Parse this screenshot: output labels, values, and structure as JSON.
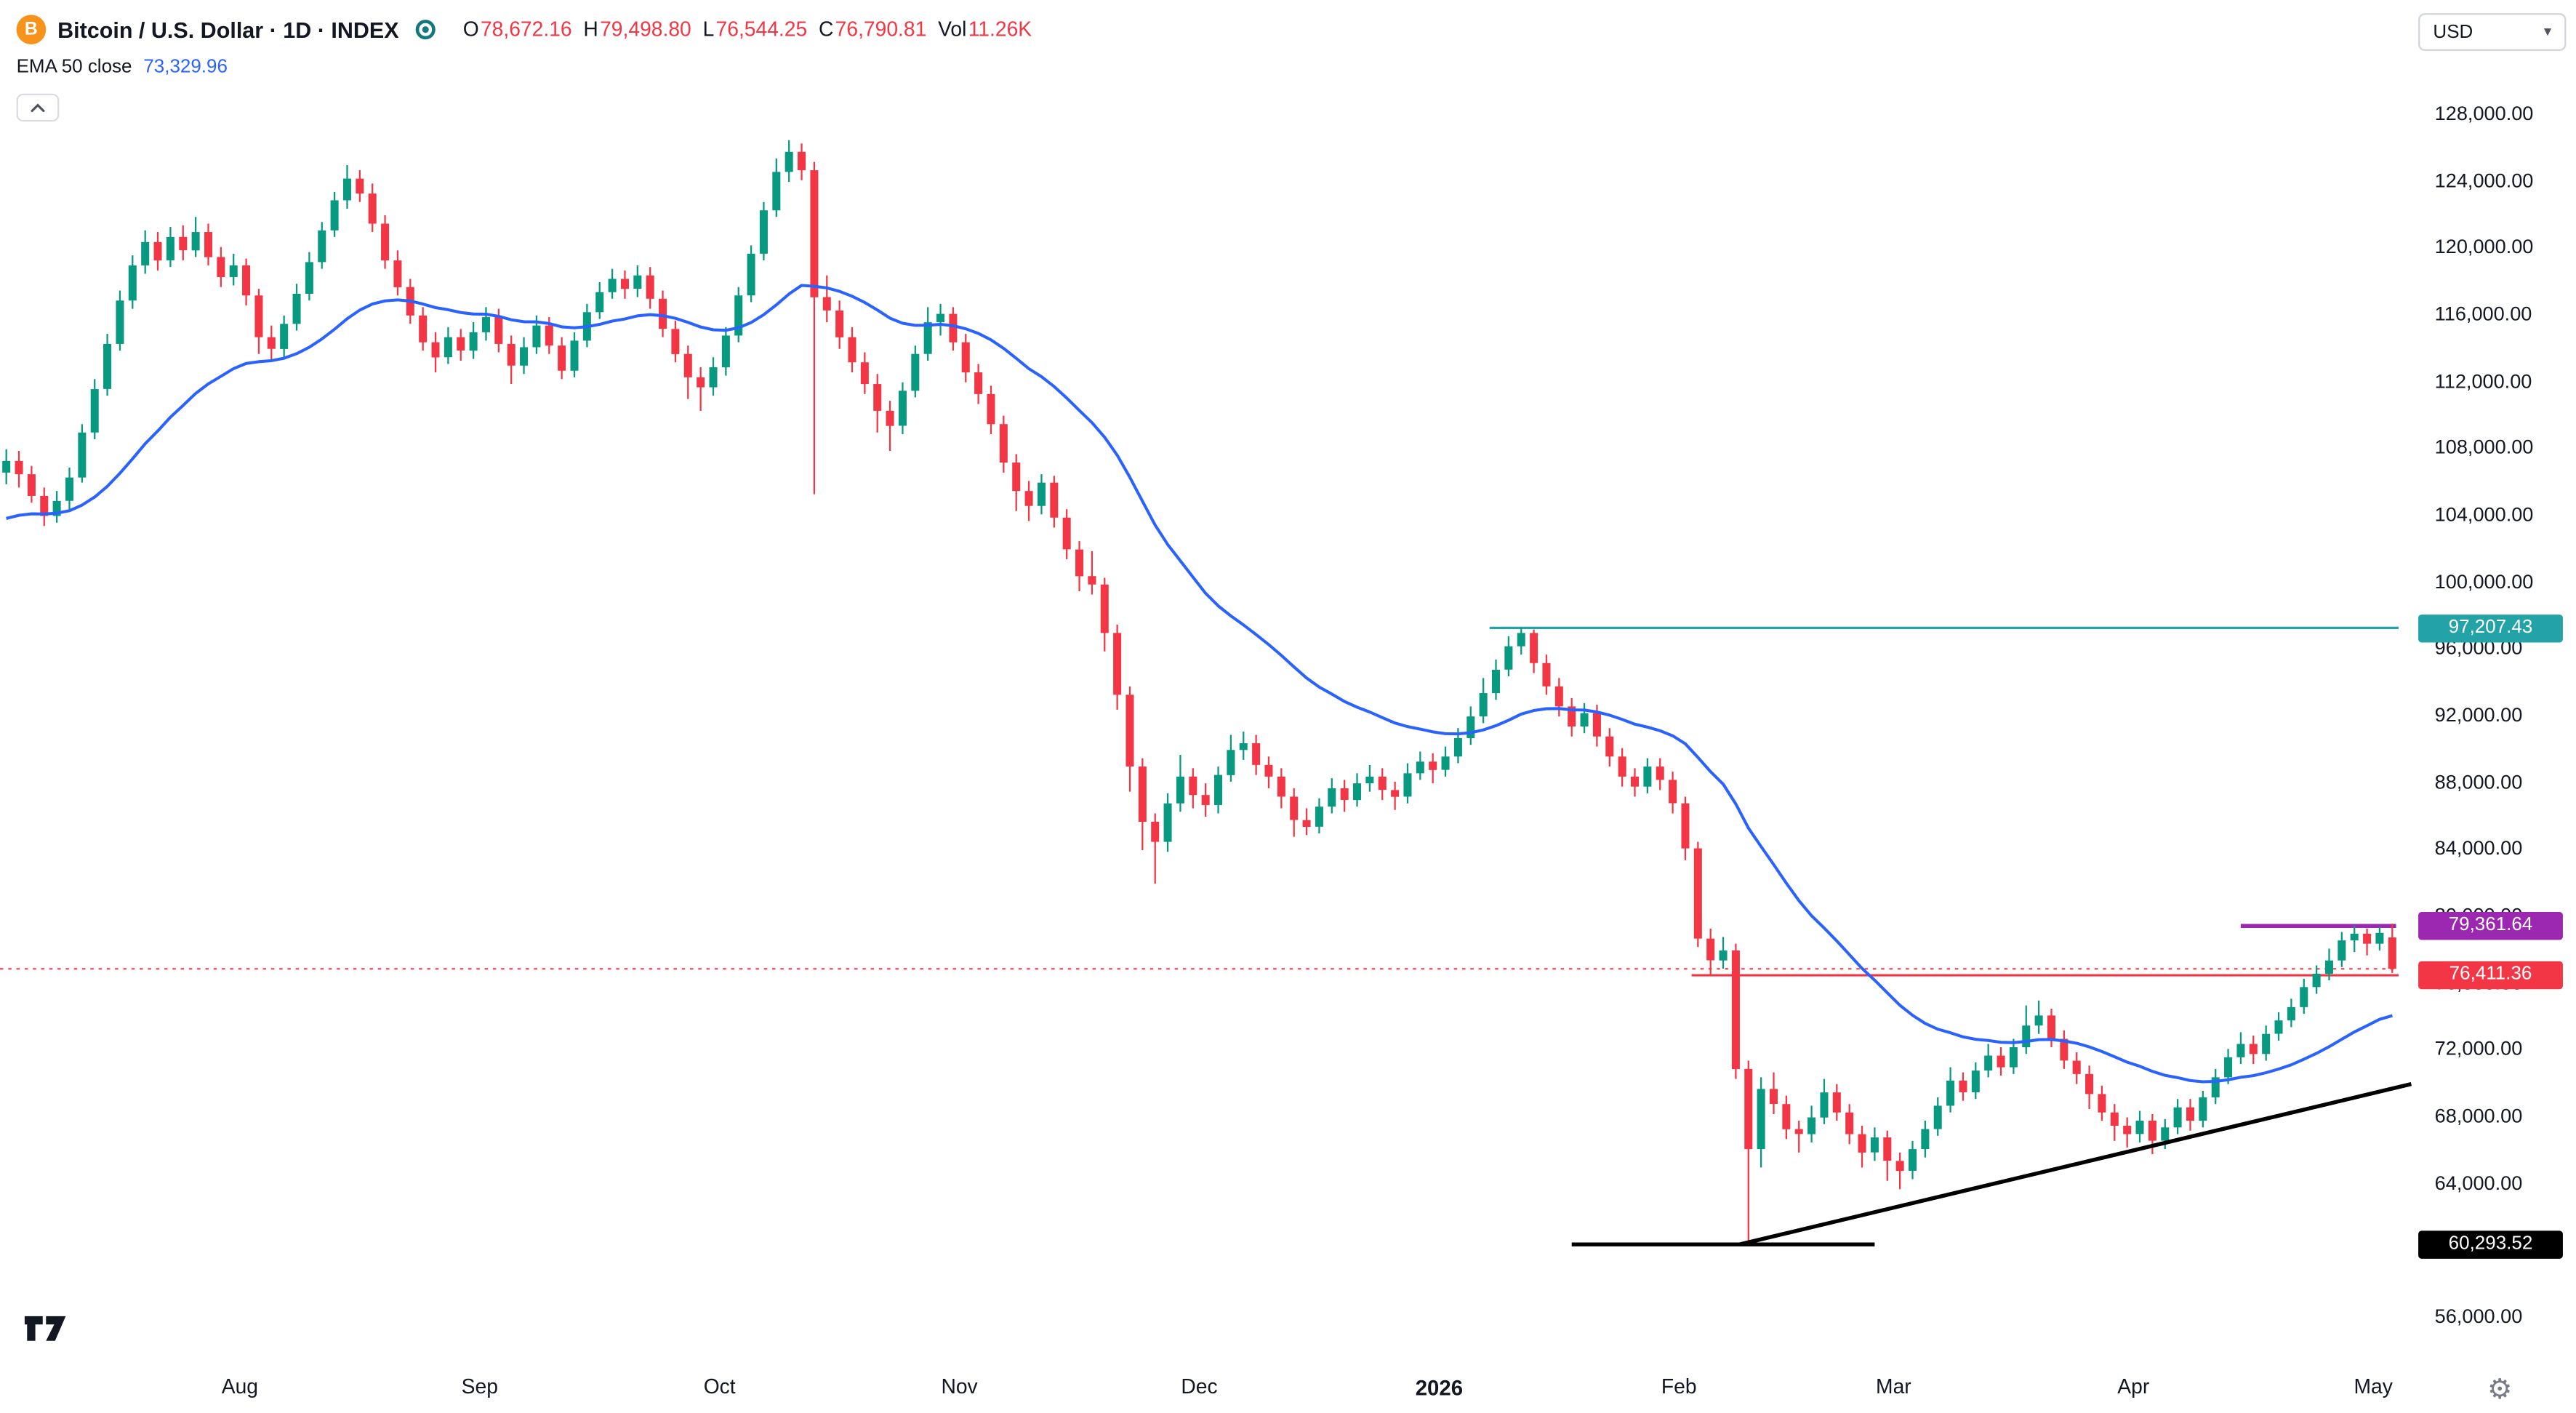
{
  "header": {
    "symbol_title": "Bitcoin / U.S. Dollar · 1D · INDEX",
    "ohlc": {
      "o_label": "O",
      "o": "78,672.16",
      "h_label": "H",
      "h": "79,498.80",
      "l_label": "L",
      "l": "76,544.25",
      "c_label": "C",
      "c": "76,790.81",
      "vol_label": "Vol",
      "vol": "11.26K"
    },
    "indicator": {
      "label": "EMA 50 close",
      "value": "73,329.96"
    }
  },
  "toolbar": {
    "currency": "USD"
  },
  "colors": {
    "up": "#089981",
    "down": "#F23645",
    "ema": "#2962FF",
    "bitcoin_orange": "#F7931A",
    "text": "#131722",
    "muted": "#787B86",
    "background": "#FFFFFF"
  },
  "chart_data": {
    "type": "candlestick",
    "title": "Bitcoin / U.S. Dollar",
    "timeframe": "1D",
    "source": "INDEX",
    "price_axis": {
      "min": 56000,
      "max": 128000,
      "step": 4000,
      "ticks": [
        {
          "v": 128000,
          "label": "128,000.00"
        },
        {
          "v": 124000,
          "label": "124,000.00"
        },
        {
          "v": 120000,
          "label": "120,000.00"
        },
        {
          "v": 116000,
          "label": "116,000.00"
        },
        {
          "v": 112000,
          "label": "112,000.00"
        },
        {
          "v": 108000,
          "label": "108,000.00"
        },
        {
          "v": 104000,
          "label": "104,000.00"
        },
        {
          "v": 100000,
          "label": "100,000.00"
        },
        {
          "v": 96000,
          "label": "96,000.00"
        },
        {
          "v": 92000,
          "label": "92,000.00"
        },
        {
          "v": 88000,
          "label": "88,000.00"
        },
        {
          "v": 84000,
          "label": "84,000.00"
        },
        {
          "v": 80000,
          "label": "80,000.00"
        },
        {
          "v": 76000,
          "label": "76,000.00"
        },
        {
          "v": 72000,
          "label": "72,000.00"
        },
        {
          "v": 68000,
          "label": "68,000.00"
        },
        {
          "v": 64000,
          "label": "64,000.00"
        },
        {
          "v": 60000,
          "label": "60,000.00"
        },
        {
          "v": 56000,
          "label": "56,000.00"
        }
      ]
    },
    "time_axis": {
      "ticks": [
        {
          "i": 19,
          "label": "Aug"
        },
        {
          "i": 38,
          "label": "Sep"
        },
        {
          "i": 57,
          "label": "Oct"
        },
        {
          "i": 76,
          "label": "Nov"
        },
        {
          "i": 95,
          "label": "Dec"
        },
        {
          "i": 114,
          "label": "2026",
          "bold": true
        },
        {
          "i": 133,
          "label": "Feb"
        },
        {
          "i": 150,
          "label": "Mar"
        },
        {
          "i": 169,
          "label": "Apr"
        },
        {
          "i": 188,
          "label": "May"
        }
      ]
    },
    "ema": {
      "label": "EMA 50",
      "period": 50,
      "seed": 103500,
      "k": 0.07,
      "color": "#2962FF",
      "last_value": "73,329.96"
    },
    "levels": [
      {
        "name": "resistance-line",
        "price": 97207.43,
        "label": "97,207.43",
        "color": "#23A2A8",
        "from_i": 118,
        "to_i": 190,
        "width": 1.4
      },
      {
        "name": "supply-line",
        "price": 79361.64,
        "label": "79,361.64",
        "color": "#9C27B0",
        "from_i": 177.5,
        "to_i": 189.8,
        "width": 2.4
      },
      {
        "name": "support-line",
        "price": 76411.36,
        "label": "76,411.36",
        "color": "#F23645",
        "from_i": 134,
        "to_i": 190,
        "width": 1.4
      },
      {
        "name": "base-line",
        "price": 60293.52,
        "label": "60,293.52",
        "color": "#000000",
        "from_i": 124.5,
        "to_i": 148.5,
        "width": 2.4
      }
    ],
    "trendline": {
      "x1_i": 137.8,
      "p1": 60293.52,
      "x2_i": 191,
      "p2": 69900,
      "color": "#000000",
      "width": 2.4
    },
    "last_price_line": {
      "price": 76790.81,
      "color": "#F23645"
    },
    "candles": [
      [
        106500,
        107900,
        105800,
        107200
      ],
      [
        107200,
        107800,
        105600,
        106400
      ],
      [
        106400,
        106900,
        104700,
        105100
      ],
      [
        105100,
        105600,
        103300,
        103900
      ],
      [
        103900,
        105400,
        103500,
        104800
      ],
      [
        104800,
        106800,
        104300,
        106200
      ],
      [
        106200,
        109400,
        105900,
        108900
      ],
      [
        108900,
        112100,
        108500,
        111500
      ],
      [
        111500,
        114800,
        111100,
        114200
      ],
      [
        114200,
        117400,
        113800,
        116800
      ],
      [
        116800,
        119500,
        116300,
        118900
      ],
      [
        118900,
        121000,
        118400,
        120300
      ],
      [
        120300,
        120900,
        118600,
        119200
      ],
      [
        119200,
        121200,
        118800,
        120600
      ],
      [
        120600,
        121300,
        119200,
        119800
      ],
      [
        119800,
        121800,
        119400,
        120900
      ],
      [
        120900,
        121400,
        118900,
        119400
      ],
      [
        119400,
        120000,
        117600,
        118200
      ],
      [
        118200,
        119600,
        117700,
        118900
      ],
      [
        118900,
        119300,
        116500,
        117100
      ],
      [
        117100,
        117500,
        113600,
        114600
      ],
      [
        114600,
        115300,
        113200,
        113900
      ],
      [
        113900,
        115900,
        113400,
        115400
      ],
      [
        115400,
        117800,
        115000,
        117200
      ],
      [
        117200,
        119700,
        116800,
        119100
      ],
      [
        119100,
        121500,
        118700,
        121000
      ],
      [
        121000,
        123300,
        120600,
        122800
      ],
      [
        122800,
        124900,
        122300,
        124100
      ],
      [
        124100,
        124600,
        122700,
        123200
      ],
      [
        123200,
        123800,
        120900,
        121400
      ],
      [
        121400,
        121900,
        118700,
        119200
      ],
      [
        119200,
        119800,
        117100,
        117600
      ],
      [
        117600,
        118100,
        115400,
        115900
      ],
      [
        115900,
        116400,
        113800,
        114300
      ],
      [
        114300,
        114900,
        112500,
        113400
      ],
      [
        113400,
        115200,
        113000,
        114600
      ],
      [
        114600,
        115100,
        113200,
        113800
      ],
      [
        113800,
        115500,
        113300,
        114900
      ],
      [
        114900,
        116400,
        114400,
        115800
      ],
      [
        115800,
        116300,
        113700,
        114200
      ],
      [
        114200,
        114700,
        111800,
        112900
      ],
      [
        112900,
        114600,
        112400,
        114000
      ],
      [
        114000,
        115900,
        113600,
        115300
      ],
      [
        115300,
        115800,
        113600,
        114100
      ],
      [
        114100,
        114600,
        112100,
        112600
      ],
      [
        112600,
        114900,
        112200,
        114400
      ],
      [
        114400,
        116600,
        114000,
        116100
      ],
      [
        116100,
        117900,
        115700,
        117300
      ],
      [
        117300,
        118700,
        116900,
        118100
      ],
      [
        118100,
        118600,
        116900,
        117500
      ],
      [
        117500,
        118900,
        117000,
        118300
      ],
      [
        118300,
        118800,
        116300,
        116900
      ],
      [
        116900,
        117400,
        114600,
        115100
      ],
      [
        115100,
        115600,
        113100,
        113600
      ],
      [
        113600,
        114100,
        110900,
        112200
      ],
      [
        112200,
        112800,
        110200,
        111600
      ],
      [
        111600,
        113400,
        111100,
        112800
      ],
      [
        112800,
        115200,
        112300,
        114700
      ],
      [
        114700,
        117600,
        114300,
        117100
      ],
      [
        117100,
        120100,
        116700,
        119600
      ],
      [
        119600,
        122700,
        119200,
        122200
      ],
      [
        122200,
        125300,
        121800,
        124500
      ],
      [
        124500,
        126400,
        123900,
        125700
      ],
      [
        125700,
        126200,
        124000,
        124600
      ],
      [
        124600,
        125100,
        105200,
        117000
      ],
      [
        117000,
        118300,
        115500,
        116200
      ],
      [
        116200,
        116800,
        113900,
        114600
      ],
      [
        114600,
        115200,
        112500,
        113100
      ],
      [
        113100,
        113700,
        111200,
        111800
      ],
      [
        111800,
        112400,
        108900,
        110200
      ],
      [
        110200,
        110800,
        107800,
        109300
      ],
      [
        109300,
        111900,
        108800,
        111400
      ],
      [
        111400,
        114100,
        111000,
        113600
      ],
      [
        113600,
        116400,
        113200,
        115500
      ],
      [
        115500,
        116600,
        114700,
        116000
      ],
      [
        116000,
        116400,
        113800,
        114300
      ],
      [
        114300,
        114800,
        111900,
        112500
      ],
      [
        112500,
        113000,
        110600,
        111200
      ],
      [
        111200,
        111700,
        108800,
        109400
      ],
      [
        109400,
        109900,
        106500,
        107100
      ],
      [
        107100,
        107600,
        104200,
        105400
      ],
      [
        105400,
        106000,
        103600,
        104500
      ],
      [
        104500,
        106400,
        104000,
        105900
      ],
      [
        105900,
        106300,
        103200,
        103800
      ],
      [
        103800,
        104300,
        101300,
        101900
      ],
      [
        101900,
        102400,
        99400,
        100300
      ],
      [
        100300,
        101800,
        99200,
        99800
      ],
      [
        99800,
        100200,
        95800,
        96900
      ],
      [
        96900,
        97400,
        92300,
        93200
      ],
      [
        93200,
        93700,
        87400,
        88900
      ],
      [
        88900,
        89400,
        83900,
        85600
      ],
      [
        85600,
        86100,
        81900,
        84400
      ],
      [
        84400,
        87300,
        83800,
        86700
      ],
      [
        86700,
        89600,
        86200,
        88300
      ],
      [
        88300,
        88800,
        86400,
        87200
      ],
      [
        87200,
        87900,
        85900,
        86600
      ],
      [
        86600,
        88900,
        86100,
        88400
      ],
      [
        88400,
        90800,
        88000,
        89900
      ],
      [
        89900,
        91000,
        89300,
        90300
      ],
      [
        90300,
        90800,
        88400,
        89000
      ],
      [
        89000,
        89500,
        87600,
        88300
      ],
      [
        88300,
        88800,
        86400,
        87100
      ],
      [
        87100,
        87600,
        84700,
        85700
      ],
      [
        85700,
        86400,
        84800,
        85300
      ],
      [
        85300,
        87000,
        84900,
        86500
      ],
      [
        86500,
        88200,
        86100,
        87600
      ],
      [
        87600,
        88100,
        86200,
        86900
      ],
      [
        86900,
        88500,
        86500,
        87900
      ],
      [
        87900,
        89000,
        87400,
        88300
      ],
      [
        88300,
        88800,
        86900,
        87500
      ],
      [
        87500,
        88000,
        86300,
        87100
      ],
      [
        87100,
        89100,
        86700,
        88500
      ],
      [
        88500,
        89800,
        88100,
        89200
      ],
      [
        89200,
        89700,
        87900,
        88700
      ],
      [
        88700,
        90100,
        88300,
        89500
      ],
      [
        89500,
        91200,
        89100,
        90600
      ],
      [
        90600,
        92500,
        90200,
        91900
      ],
      [
        91900,
        94200,
        91500,
        93300
      ],
      [
        93300,
        95300,
        92900,
        94700
      ],
      [
        94700,
        96700,
        94300,
        96100
      ],
      [
        96100,
        97207.43,
        95600,
        96900
      ],
      [
        96900,
        97100,
        94500,
        95100
      ],
      [
        95100,
        95600,
        93200,
        93700
      ],
      [
        93700,
        94200,
        91900,
        92500
      ],
      [
        92500,
        93000,
        90700,
        91300
      ],
      [
        91300,
        92700,
        90900,
        92100
      ],
      [
        92100,
        92600,
        90100,
        90700
      ],
      [
        90700,
        91200,
        88900,
        89500
      ],
      [
        89500,
        90000,
        87700,
        88300
      ],
      [
        88300,
        88800,
        87100,
        87700
      ],
      [
        87700,
        89400,
        87300,
        88900
      ],
      [
        88900,
        89400,
        87500,
        88100
      ],
      [
        88100,
        88600,
        86100,
        86700
      ],
      [
        86700,
        87100,
        83300,
        84000
      ],
      [
        84000,
        84400,
        78100,
        78600
      ],
      [
        78600,
        79200,
        76411.36,
        77300
      ],
      [
        77300,
        78700,
        76800,
        77900
      ],
      [
        77900,
        78300,
        70200,
        70800
      ],
      [
        70800,
        71300,
        60293.52,
        66000
      ],
      [
        66000,
        70300,
        64900,
        69600
      ],
      [
        69600,
        70600,
        68100,
        68700
      ],
      [
        68700,
        69200,
        66600,
        67200
      ],
      [
        67200,
        67700,
        65800,
        66900
      ],
      [
        66900,
        68600,
        66400,
        67900
      ],
      [
        67900,
        70200,
        67500,
        69400
      ],
      [
        69400,
        69900,
        67700,
        68200
      ],
      [
        68200,
        68700,
        66300,
        66900
      ],
      [
        66900,
        67400,
        64900,
        65800
      ],
      [
        65800,
        67300,
        65300,
        66700
      ],
      [
        66700,
        67100,
        64100,
        65300
      ],
      [
        65300,
        65800,
        63600,
        64700
      ],
      [
        64700,
        66500,
        64200,
        66000
      ],
      [
        66000,
        67700,
        65500,
        67200
      ],
      [
        67200,
        69100,
        66800,
        68600
      ],
      [
        68600,
        70900,
        68200,
        70100
      ],
      [
        70100,
        70600,
        68900,
        69400
      ],
      [
        69400,
        71200,
        69000,
        70700
      ],
      [
        70700,
        72300,
        70300,
        71600
      ],
      [
        71600,
        72100,
        70400,
        70900
      ],
      [
        70900,
        72600,
        70500,
        72100
      ],
      [
        72100,
        74600,
        71700,
        73400
      ],
      [
        73400,
        74900,
        72900,
        74000
      ],
      [
        74000,
        74400,
        72100,
        72600
      ],
      [
        72600,
        73100,
        70800,
        71300
      ],
      [
        71300,
        71800,
        69900,
        70500
      ],
      [
        70500,
        71000,
        68400,
        69300
      ],
      [
        69300,
        69800,
        67700,
        68200
      ],
      [
        68200,
        68700,
        66500,
        67400
      ],
      [
        67400,
        67900,
        66100,
        66900
      ],
      [
        66900,
        68300,
        66400,
        67700
      ],
      [
        67700,
        68100,
        65700,
        66500
      ],
      [
        66500,
        67800,
        66000,
        67300
      ],
      [
        67300,
        69000,
        66900,
        68500
      ],
      [
        68500,
        69000,
        67100,
        67700
      ],
      [
        67700,
        69500,
        67300,
        69100
      ],
      [
        69100,
        70800,
        68700,
        70300
      ],
      [
        70300,
        72000,
        69900,
        71500
      ],
      [
        71500,
        73000,
        71100,
        72300
      ],
      [
        72300,
        72800,
        71100,
        71700
      ],
      [
        71700,
        73400,
        71300,
        72900
      ],
      [
        72900,
        74200,
        72500,
        73700
      ],
      [
        73700,
        75000,
        73300,
        74500
      ],
      [
        74500,
        76200,
        74100,
        75700
      ],
      [
        75700,
        77000,
        75300,
        76500
      ],
      [
        76500,
        78000,
        76100,
        77300
      ],
      [
        77300,
        79000,
        76900,
        78500
      ],
      [
        78500,
        79361.64,
        77800,
        78900
      ],
      [
        78900,
        79200,
        77600,
        78300
      ],
      [
        78300,
        79300,
        77900,
        78950
      ],
      [
        78672.16,
        79498.8,
        76544.25,
        76790.81
      ]
    ]
  }
}
